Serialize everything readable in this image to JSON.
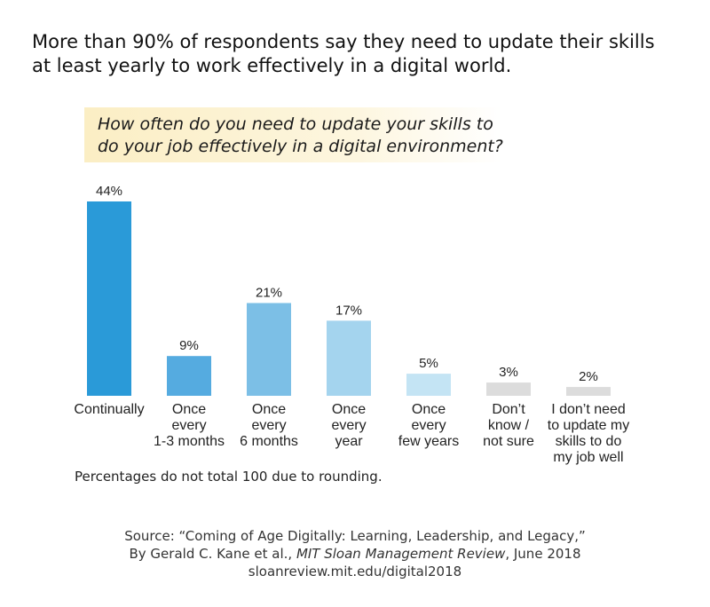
{
  "headline": "More than 90% of respondents say they need to update their skills at least yearly to work effectively in a digital world.",
  "question": "How often do you need to update your skills to do your job effectively in a digital environment?",
  "note": "Percentages do not total 100 due to rounding.",
  "source": {
    "line1": "Source: “Coming of Age Digitally: Learning, Leadership, and Legacy,”",
    "line2_prefix": "By Gerald C. Kane et al., ",
    "line2_italic": "MIT Sloan Management Review",
    "line2_suffix": ", June 2018",
    "line3": "sloanreview.mit.edu/digital2018"
  },
  "chart_data": {
    "type": "bar",
    "title": "How often do you need to update your skills to do your job effectively in a digital environment?",
    "categories": [
      "Continually",
      "Once\nevery\n1-3 months",
      "Once\nevery\n6 months",
      "Once\nevery\nyear",
      "Once\nevery\nfew years",
      "Don’t\nknow /\nnot sure",
      "I don’t need\nto update my\nskills to do\nmy job well"
    ],
    "values": [
      44,
      9,
      21,
      17,
      5,
      3,
      2
    ],
    "value_labels": [
      "44%",
      "9%",
      "21%",
      "17%",
      "5%",
      "3%",
      "2%"
    ],
    "unit": "%",
    "ylim": [
      0,
      44
    ],
    "grid": false,
    "legend": "none",
    "colors": {
      "Continually": "#2a9ad8",
      "Once every 1-3 months": "#55abe0",
      "Once every 6 months": "#7cbfe6",
      "Once every year": "#a4d4ee",
      "Once every few years": "#c4e4f4",
      "Don’t know / not sure": "#dcdcdc",
      "I don’t need to update my skills to do my job well": "#dcdcdc"
    }
  }
}
